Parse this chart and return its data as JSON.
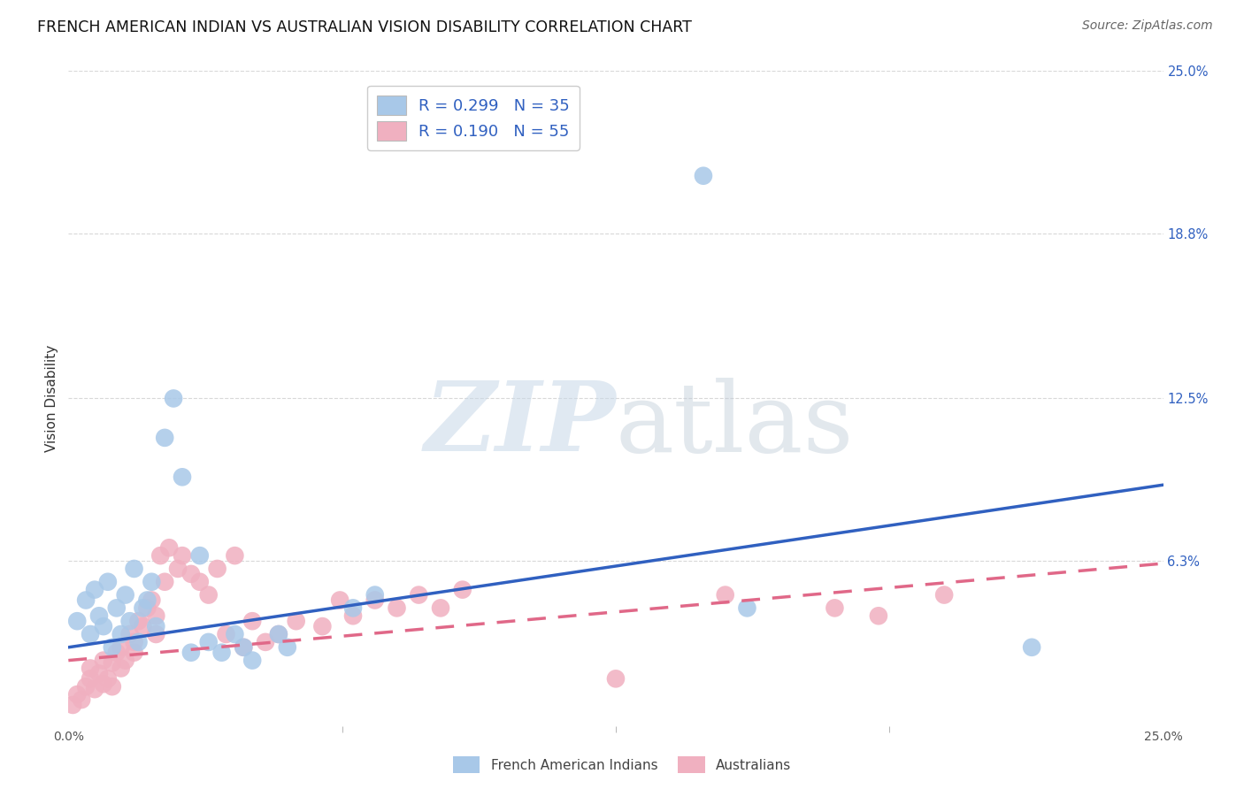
{
  "title": "FRENCH AMERICAN INDIAN VS AUSTRALIAN VISION DISABILITY CORRELATION CHART",
  "source": "Source: ZipAtlas.com",
  "ylabel": "Vision Disability",
  "xlim": [
    0.0,
    0.25
  ],
  "ylim": [
    0.0,
    0.25
  ],
  "ytick_labels_right": [
    "25.0%",
    "18.8%",
    "12.5%",
    "6.3%"
  ],
  "ytick_positions_right": [
    0.25,
    0.188,
    0.125,
    0.063
  ],
  "background_color": "#ffffff",
  "grid_color": "#d8d8d8",
  "blue_color": "#a8c8e8",
  "pink_color": "#f0b0c0",
  "blue_line_color": "#3060c0",
  "pink_line_color": "#e06888",
  "R_blue": 0.299,
  "N_blue": 35,
  "R_pink": 0.19,
  "N_pink": 55,
  "blue_x": [
    0.002,
    0.004,
    0.005,
    0.006,
    0.007,
    0.008,
    0.009,
    0.01,
    0.011,
    0.012,
    0.013,
    0.014,
    0.015,
    0.016,
    0.017,
    0.018,
    0.019,
    0.02,
    0.022,
    0.024,
    0.026,
    0.03,
    0.035,
    0.038,
    0.042,
    0.05,
    0.065,
    0.07,
    0.145,
    0.155,
    0.22,
    0.028,
    0.032,
    0.04,
    0.048
  ],
  "blue_y": [
    0.04,
    0.048,
    0.035,
    0.052,
    0.042,
    0.038,
    0.055,
    0.03,
    0.045,
    0.035,
    0.05,
    0.04,
    0.06,
    0.032,
    0.045,
    0.048,
    0.055,
    0.038,
    0.11,
    0.125,
    0.095,
    0.065,
    0.028,
    0.035,
    0.025,
    0.03,
    0.045,
    0.05,
    0.21,
    0.045,
    0.03,
    0.028,
    0.032,
    0.03,
    0.035
  ],
  "pink_x": [
    0.001,
    0.002,
    0.003,
    0.004,
    0.005,
    0.005,
    0.006,
    0.007,
    0.008,
    0.008,
    0.009,
    0.01,
    0.01,
    0.011,
    0.012,
    0.012,
    0.013,
    0.014,
    0.015,
    0.015,
    0.016,
    0.017,
    0.018,
    0.019,
    0.02,
    0.02,
    0.021,
    0.022,
    0.023,
    0.025,
    0.026,
    0.028,
    0.03,
    0.032,
    0.034,
    0.036,
    0.038,
    0.04,
    0.042,
    0.045,
    0.048,
    0.052,
    0.058,
    0.062,
    0.065,
    0.07,
    0.075,
    0.08,
    0.085,
    0.09,
    0.125,
    0.15,
    0.175,
    0.185,
    0.2
  ],
  "pink_y": [
    0.008,
    0.012,
    0.01,
    0.015,
    0.018,
    0.022,
    0.014,
    0.02,
    0.016,
    0.025,
    0.018,
    0.024,
    0.015,
    0.028,
    0.022,
    0.03,
    0.025,
    0.035,
    0.028,
    0.032,
    0.04,
    0.038,
    0.045,
    0.048,
    0.035,
    0.042,
    0.065,
    0.055,
    0.068,
    0.06,
    0.065,
    0.058,
    0.055,
    0.05,
    0.06,
    0.035,
    0.065,
    0.03,
    0.04,
    0.032,
    0.035,
    0.04,
    0.038,
    0.048,
    0.042,
    0.048,
    0.045,
    0.05,
    0.045,
    0.052,
    0.018,
    0.05,
    0.045,
    0.042,
    0.05
  ],
  "blue_trend_x": [
    0.0,
    0.25
  ],
  "blue_trend_y": [
    0.03,
    0.092
  ],
  "pink_trend_x": [
    0.0,
    0.25
  ],
  "pink_trend_y": [
    0.025,
    0.062
  ]
}
